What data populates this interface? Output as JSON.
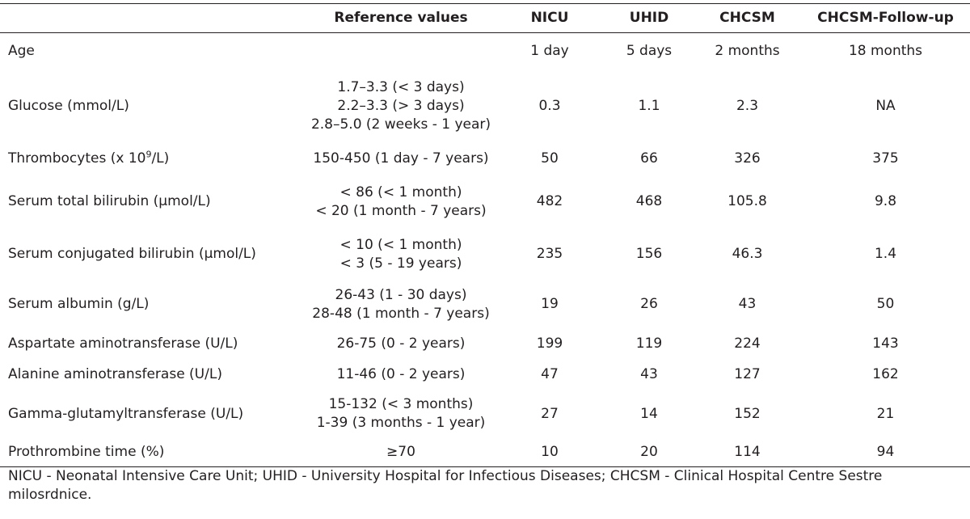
{
  "table": {
    "headers": {
      "parameter": "",
      "reference": "Reference values",
      "nicu": "NICU",
      "uhid": "UHID",
      "chcsm": "CHCSM",
      "followup": "CHCSM-Follow-up"
    },
    "rows": [
      {
        "label": "Age",
        "reference": [],
        "nicu": "1 day",
        "uhid": "5 days",
        "chcsm": "2 months",
        "followup": "18 months"
      },
      {
        "label": "Glucose (mmol/L)",
        "reference": [
          "1.7–3.3 (< 3 days)",
          "2.2–3.3 (> 3 days)",
          "2.8–5.0 (2 weeks - 1 year)"
        ],
        "nicu": "0.3",
        "uhid": "1.1",
        "chcsm": "2.3",
        "followup": "NA"
      },
      {
        "label_prefix": "Thrombocytes (x 10",
        "label_sup": "9",
        "label_suffix": "/L)",
        "reference": [
          "150-450 (1 day - 7 years)"
        ],
        "nicu": "50",
        "uhid": "66",
        "chcsm": "326",
        "followup": "375"
      },
      {
        "label": "Serum total bilirubin (µmol/L)",
        "reference": [
          "< 86 (< 1 month)",
          "< 20 (1 month - 7 years)"
        ],
        "nicu": "482",
        "uhid": "468",
        "chcsm": "105.8",
        "followup": "9.8"
      },
      {
        "label": "Serum conjugated bilirubin (µmol/L)",
        "reference": [
          "< 10 (< 1 month)",
          "< 3 (5 - 19 years)"
        ],
        "nicu": "235",
        "uhid": "156",
        "chcsm": "46.3",
        "followup": "1.4"
      },
      {
        "label": "Serum albumin (g/L)",
        "reference": [
          "26-43 (1 - 30 days)",
          "28-48 (1 month - 7 years)"
        ],
        "nicu": "19",
        "uhid": "26",
        "chcsm": "43",
        "followup": "50"
      },
      {
        "label": "Aspartate aminotransferase (U/L)",
        "reference": [
          "26-75 (0 - 2 years)"
        ],
        "nicu": "199",
        "uhid": "119",
        "chcsm": "224",
        "followup": "143"
      },
      {
        "label": "Alanine aminotransferase (U/L)",
        "reference": [
          "11-46 (0 - 2 years)"
        ],
        "nicu": "47",
        "uhid": "43",
        "chcsm": "127",
        "followup": "162"
      },
      {
        "label": "Gamma-glutamyltransferase (U/L)",
        "reference": [
          "15-132 (< 3 months)",
          "1-39 (3 months - 1 year)"
        ],
        "nicu": "27",
        "uhid": "14",
        "chcsm": "152",
        "followup": "21"
      },
      {
        "label": "Prothrombine time (%)",
        "reference": [
          "≥70"
        ],
        "nicu": "10",
        "uhid": "20",
        "chcsm": "114",
        "followup": "94"
      }
    ]
  },
  "footnote": "NICU - Neonatal Intensive Care Unit; UHID - University Hospital for Infectious Diseases; CHCSM - Clinical Hospital Centre Sestre milosrdnice."
}
